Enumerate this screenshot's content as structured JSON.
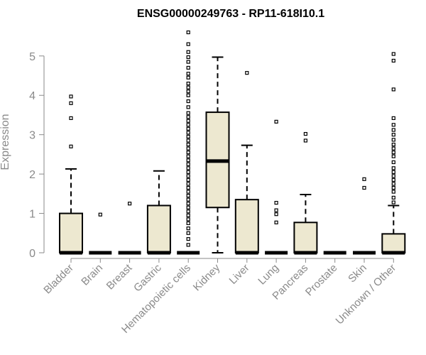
{
  "chart_data": {
    "type": "box",
    "title": "ENSG00000249763 - RP11-618I10.1",
    "ylabel": "Expression",
    "xlabel": "",
    "ylim": [
      0,
      5.7
    ],
    "yticks": [
      0,
      1,
      2,
      3,
      4,
      5
    ],
    "colors": {
      "box_fill": "#ede8d0",
      "box_stroke": "#000000",
      "axis": "#8a8a8a",
      "text": "#8a8a8a"
    },
    "categories": [
      "Bladder",
      "Brain",
      "Breast",
      "Gastric",
      "Hematopoietic cells",
      "Kidney",
      "Liver",
      "Lung",
      "Pancreas",
      "Prostate",
      "Skin",
      "Unknown / Other"
    ],
    "series": [
      {
        "category": "Bladder",
        "q1": 0,
        "median": 0,
        "q3": 1.0,
        "whisker_low": 0,
        "whisker_high": 2.13,
        "outliers": [
          2.7,
          3.42,
          3.8,
          3.97
        ]
      },
      {
        "category": "Brain",
        "q1": 0,
        "median": 0,
        "q3": 0,
        "whisker_low": 0,
        "whisker_high": 0,
        "outliers": [
          0.97
        ]
      },
      {
        "category": "Breast",
        "q1": 0,
        "median": 0,
        "q3": 0,
        "whisker_low": 0,
        "whisker_high": 0,
        "outliers": [
          1.25
        ]
      },
      {
        "category": "Gastric",
        "q1": 0,
        "median": 0,
        "q3": 1.2,
        "whisker_low": 0,
        "whisker_high": 2.08,
        "outliers": []
      },
      {
        "category": "Hematopoietic cells",
        "q1": 0,
        "median": 0,
        "q3": 0,
        "whisker_low": 0,
        "whisker_high": 0,
        "outliers": [
          0.2,
          0.35,
          0.5,
          0.62,
          0.75,
          0.85,
          0.95,
          1.05,
          1.15,
          1.25,
          1.35,
          1.45,
          1.55,
          1.65,
          1.75,
          1.85,
          1.95,
          2.05,
          2.15,
          2.25,
          2.35,
          2.45,
          2.55,
          2.65,
          2.75,
          2.85,
          2.95,
          3.05,
          3.15,
          3.25,
          3.35,
          3.45,
          3.55,
          3.7,
          3.85,
          4.0,
          4.1,
          4.2,
          4.3,
          4.45,
          4.55,
          4.7,
          4.85,
          4.97,
          5.1,
          5.3,
          5.6
        ]
      },
      {
        "category": "Kidney",
        "q1": 1.15,
        "median": 2.33,
        "q3": 3.57,
        "whisker_low": 0,
        "whisker_high": 4.97,
        "outliers": []
      },
      {
        "category": "Liver",
        "q1": 0,
        "median": 0,
        "q3": 1.35,
        "whisker_low": 0,
        "whisker_high": 2.73,
        "outliers": [
          4.57
        ]
      },
      {
        "category": "Lung",
        "q1": 0,
        "median": 0,
        "q3": 0,
        "whisker_low": 0,
        "whisker_high": 0,
        "outliers": [
          0.77,
          0.98,
          1.08,
          1.27,
          3.33
        ]
      },
      {
        "category": "Pancreas",
        "q1": 0,
        "median": 0,
        "q3": 0.77,
        "whisker_low": 0,
        "whisker_high": 1.48,
        "outliers": [
          2.85,
          3.02
        ]
      },
      {
        "category": "Prostate",
        "q1": 0,
        "median": 0,
        "q3": 0,
        "whisker_low": 0,
        "whisker_high": 0,
        "outliers": []
      },
      {
        "category": "Skin",
        "q1": 0,
        "median": 0,
        "q3": 0,
        "whisker_low": 0,
        "whisker_high": 0,
        "outliers": [
          1.65,
          1.87
        ]
      },
      {
        "category": "Unknown / Other",
        "q1": 0,
        "median": 0,
        "q3": 0.48,
        "whisker_low": 0,
        "whisker_high": 1.2,
        "outliers": [
          1.28,
          1.4,
          1.55,
          1.65,
          1.75,
          1.85,
          1.95,
          2.05,
          2.15,
          2.3,
          2.45,
          2.55,
          2.65,
          2.75,
          2.87,
          3.0,
          3.12,
          3.25,
          3.42,
          4.15,
          4.88,
          5.05
        ]
      }
    ],
    "grid": false,
    "legend": "none"
  }
}
